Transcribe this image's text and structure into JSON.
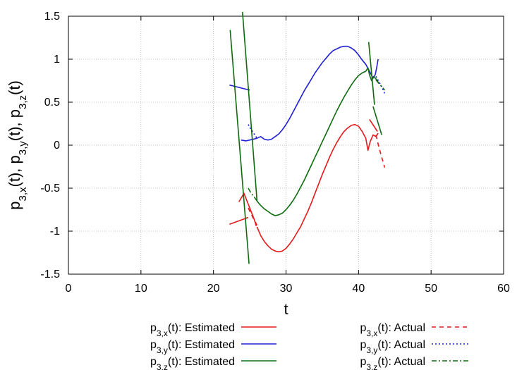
{
  "chart_data": {
    "type": "line",
    "xlabel": "t",
    "ylabel_parts": [
      {
        "t": "p",
        "sub": false
      },
      {
        "t": "3,x",
        "sub": true
      },
      {
        "t": "(t), p",
        "sub": false
      },
      {
        "t": "3,y",
        "sub": true
      },
      {
        "t": "(t), p",
        "sub": false
      },
      {
        "t": "3,z",
        "sub": true
      },
      {
        "t": "(t)",
        "sub": false
      }
    ],
    "xlim": [
      0,
      60
    ],
    "ylim": [
      -1.5,
      1.5
    ],
    "xticks": [
      0,
      10,
      20,
      30,
      40,
      50,
      60
    ],
    "yticks": [
      -1.5,
      -1,
      -0.5,
      0,
      0.5,
      1,
      1.5
    ],
    "xtick_labels": [
      "0",
      "10",
      "20",
      "30",
      "40",
      "50",
      "60"
    ],
    "ytick_labels": [
      "-1.5",
      "-1",
      "-0.5",
      "0",
      "0.5",
      "1",
      "1.5"
    ],
    "grid": true,
    "legend_placement": "bottom",
    "series": [
      {
        "id": "px-est",
        "legend_base": "p",
        "legend_sub": "3,x",
        "legend_tail": "(t): Estimated",
        "color": "#e41a1c",
        "dash": "solid",
        "segments": [
          [
            [
              22.2,
              -0.92
            ],
            [
              24.8,
              -0.84
            ]
          ],
          [
            [
              23.5,
              -0.66
            ],
            [
              24.2,
              -0.56
            ],
            [
              25.6,
              -0.86
            ],
            [
              25.9,
              -0.94
            ]
          ],
          [
            [
              26.0,
              -0.95
            ],
            [
              26.5,
              -1.05
            ],
            [
              27.0,
              -1.12
            ],
            [
              27.5,
              -1.17
            ],
            [
              28.0,
              -1.21
            ],
            [
              28.5,
              -1.23
            ],
            [
              29.0,
              -1.24
            ],
            [
              29.5,
              -1.23
            ],
            [
              30.0,
              -1.2
            ],
            [
              30.5,
              -1.15
            ],
            [
              31.0,
              -1.09
            ],
            [
              31.5,
              -1.02
            ],
            [
              32.0,
              -0.95
            ],
            [
              32.5,
              -0.86
            ],
            [
              33.0,
              -0.77
            ],
            [
              33.5,
              -0.67
            ],
            [
              34.0,
              -0.56
            ],
            [
              34.5,
              -0.45
            ],
            [
              35.0,
              -0.34
            ],
            [
              35.5,
              -0.24
            ],
            [
              36.0,
              -0.14
            ],
            [
              36.5,
              -0.05
            ],
            [
              37.0,
              0.03
            ],
            [
              37.5,
              0.1
            ],
            [
              38.0,
              0.16
            ],
            [
              38.5,
              0.2
            ],
            [
              39.0,
              0.23
            ],
            [
              39.5,
              0.24
            ],
            [
              40.0,
              0.22
            ],
            [
              40.5,
              0.16
            ],
            [
              41.0,
              0.08
            ],
            [
              41.3,
              -0.06
            ],
            [
              41.6,
              0.04
            ],
            [
              42.0,
              0.12
            ],
            [
              42.4,
              0.1
            ],
            [
              42.7,
              0.14
            ]
          ],
          [
            [
              41.5,
              0.3
            ],
            [
              42.6,
              0.16
            ]
          ]
        ]
      },
      {
        "id": "py-est",
        "legend_base": "p",
        "legend_sub": "3,y",
        "legend_tail": "(t): Estimated",
        "color": "#1f1fd6",
        "dash": "solid",
        "segments": [
          [
            [
              22.2,
              0.7
            ],
            [
              25.0,
              0.64
            ]
          ],
          [
            [
              23.8,
              0.06
            ],
            [
              24.5,
              0.05
            ],
            [
              25.0,
              0.06
            ],
            [
              25.5,
              0.07
            ],
            [
              26.0,
              0.08
            ],
            [
              26.5,
              0.1
            ],
            [
              27.0,
              0.07
            ],
            [
              27.5,
              0.06
            ],
            [
              28.0,
              0.07
            ],
            [
              28.5,
              0.1
            ],
            [
              29.0,
              0.13
            ],
            [
              29.5,
              0.18
            ],
            [
              30.0,
              0.24
            ],
            [
              30.5,
              0.31
            ],
            [
              31.0,
              0.39
            ],
            [
              31.5,
              0.47
            ],
            [
              32.0,
              0.55
            ],
            [
              32.5,
              0.63
            ],
            [
              33.0,
              0.7
            ],
            [
              33.5,
              0.77
            ],
            [
              34.0,
              0.84
            ],
            [
              34.5,
              0.9
            ],
            [
              35.0,
              0.96
            ],
            [
              35.5,
              1.01
            ],
            [
              36.0,
              1.06
            ],
            [
              36.5,
              1.1
            ],
            [
              37.0,
              1.12
            ],
            [
              37.5,
              1.14
            ],
            [
              38.0,
              1.15
            ],
            [
              38.5,
              1.15
            ],
            [
              39.0,
              1.13
            ],
            [
              39.5,
              1.1
            ],
            [
              40.0,
              1.05
            ],
            [
              40.5,
              0.99
            ],
            [
              41.0,
              0.94
            ],
            [
              41.5,
              0.86
            ],
            [
              42.0,
              0.78
            ],
            [
              42.3,
              0.82
            ],
            [
              42.5,
              0.9
            ],
            [
              42.7,
              1.0
            ]
          ]
        ]
      },
      {
        "id": "pz-est",
        "legend_base": "p",
        "legend_sub": "3,z",
        "legend_tail": "(t): Estimated",
        "color": "#0f6b0f",
        "dash": "solid",
        "segments": [
          [
            [
              22.3,
              1.34
            ],
            [
              24.9,
              -1.38
            ]
          ],
          [
            [
              24.0,
              1.55
            ],
            [
              26.0,
              -0.65
            ]
          ],
          [
            [
              26.0,
              -0.65
            ],
            [
              26.5,
              -0.7
            ],
            [
              27.0,
              -0.74
            ],
            [
              27.5,
              -0.77
            ],
            [
              28.0,
              -0.8
            ],
            [
              28.5,
              -0.82
            ],
            [
              29.0,
              -0.81
            ],
            [
              29.5,
              -0.79
            ],
            [
              30.0,
              -0.75
            ],
            [
              30.5,
              -0.7
            ],
            [
              31.0,
              -0.64
            ],
            [
              31.5,
              -0.57
            ],
            [
              32.0,
              -0.49
            ],
            [
              32.5,
              -0.41
            ],
            [
              33.0,
              -0.32
            ],
            [
              33.5,
              -0.23
            ],
            [
              34.0,
              -0.14
            ],
            [
              34.5,
              -0.05
            ],
            [
              35.0,
              0.04
            ],
            [
              35.5,
              0.13
            ],
            [
              36.0,
              0.22
            ],
            [
              36.5,
              0.31
            ],
            [
              37.0,
              0.4
            ],
            [
              37.5,
              0.48
            ],
            [
              38.0,
              0.56
            ],
            [
              38.5,
              0.63
            ],
            [
              39.0,
              0.7
            ],
            [
              39.5,
              0.76
            ],
            [
              40.0,
              0.81
            ],
            [
              40.5,
              0.84
            ],
            [
              41.0,
              0.86
            ],
            [
              41.3,
              0.9
            ],
            [
              41.5,
              0.82
            ],
            [
              41.8,
              0.75
            ],
            [
              42.1,
              0.8
            ],
            [
              42.5,
              0.76
            ],
            [
              42.8,
              0.72
            ]
          ],
          [
            [
              41.4,
              1.2
            ],
            [
              42.2,
              0.47
            ]
          ],
          [
            [
              42.0,
              0.45
            ],
            [
              43.2,
              0.12
            ]
          ]
        ]
      },
      {
        "id": "px-act",
        "legend_base": "p",
        "legend_sub": "3,x",
        "legend_tail": "(t): Actual",
        "color": "#e41a1c",
        "dash": "dashed",
        "segments": [
          [
            [
              24.8,
              -0.73
            ],
            [
              25.2,
              -0.8
            ],
            [
              25.6,
              -0.87
            ],
            [
              26.0,
              -0.93
            ]
          ],
          [
            [
              42.4,
              0.12
            ],
            [
              42.8,
              -0.02
            ],
            [
              43.2,
              -0.14
            ],
            [
              43.6,
              -0.26
            ]
          ]
        ]
      },
      {
        "id": "py-act",
        "legend_base": "p",
        "legend_sub": "3,y",
        "legend_tail": "(t): Actual",
        "color": "#1f1fd6",
        "dash": "dotted",
        "segments": [
          [
            [
              24.8,
              0.24
            ],
            [
              25.2,
              0.18
            ],
            [
              25.6,
              0.13
            ],
            [
              26.0,
              0.08
            ]
          ],
          [
            [
              42.4,
              0.8
            ],
            [
              42.8,
              0.74
            ],
            [
              43.2,
              0.68
            ],
            [
              43.6,
              0.6
            ]
          ]
        ]
      },
      {
        "id": "pz-act",
        "legend_base": "p",
        "legend_sub": "3,z",
        "legend_tail": "(t): Actual",
        "color": "#0f6b0f",
        "dash": "dashdot",
        "segments": [
          [
            [
              24.8,
              -0.5
            ],
            [
              25.2,
              -0.56
            ],
            [
              25.6,
              -0.6
            ],
            [
              26.0,
              -0.65
            ]
          ],
          [
            [
              42.4,
              0.76
            ],
            [
              42.8,
              0.72
            ],
            [
              43.2,
              0.68
            ],
            [
              43.6,
              0.64
            ]
          ]
        ]
      }
    ]
  }
}
